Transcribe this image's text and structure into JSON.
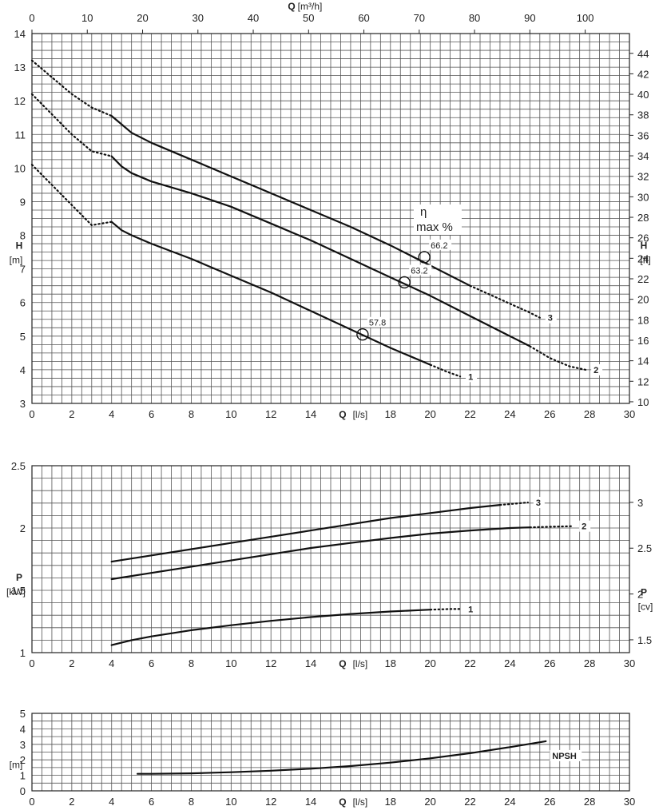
{
  "chart_data": [
    {
      "type": "line",
      "id": "head",
      "x_axis_label": "Q",
      "x_axis_unit": "[l/s]",
      "x_top_axis_label": "Q",
      "x_top_axis_unit": "[m³/h]",
      "y_axis_label": "H",
      "y_axis_unit": "[m]",
      "y_right_axis_label": "H",
      "y_right_axis_unit": "[ft]",
      "xlim": [
        0,
        30
      ],
      "ylim": [
        3,
        14
      ],
      "x_top_lim": [
        0,
        108
      ],
      "y_right_lim": [
        9.84,
        45.93
      ],
      "x_ticks": [
        0,
        2,
        4,
        6,
        8,
        10,
        12,
        14,
        16,
        18,
        20,
        22,
        24,
        26,
        28,
        30
      ],
      "x_tick_labels": [
        "0",
        "2",
        "4",
        "6",
        "8",
        "10",
        "12",
        "14",
        "16",
        "18",
        "20",
        "22",
        "24",
        "26",
        "28",
        "30"
      ],
      "y_ticks": [
        3,
        4,
        5,
        6,
        7,
        8,
        9,
        10,
        11,
        12,
        13,
        14
      ],
      "y_tick_labels": [
        "3",
        "4",
        "5",
        "6",
        "7",
        "8",
        "9",
        "10",
        "11",
        "12",
        "13",
        "14"
      ],
      "x_top_ticks": [
        0,
        10,
        20,
        30,
        40,
        50,
        60,
        70,
        80,
        90,
        100
      ],
      "x_top_tick_labels": [
        "0",
        "10",
        "20",
        "30",
        "40",
        "50",
        "60",
        "70",
        "80",
        "90",
        "100"
      ],
      "y_right_ticks": [
        10,
        12,
        14,
        16,
        18,
        20,
        22,
        24,
        26,
        28,
        30,
        32,
        34,
        36,
        38,
        40,
        42,
        44
      ],
      "y_right_tick_labels": [
        "10",
        "12",
        "14",
        "16",
        "18",
        "20",
        "22",
        "24",
        "26",
        "28",
        "30",
        "32",
        "34",
        "36",
        "38",
        "40",
        "42",
        "44"
      ],
      "grid": true,
      "series": [
        {
          "name": "1",
          "dotted_start": [
            [
              0,
              10.1
            ],
            [
              1,
              9.5
            ],
            [
              2,
              8.9
            ],
            [
              3,
              8.3
            ],
            [
              4,
              8.4
            ]
          ],
          "solid": [
            [
              4,
              8.4
            ],
            [
              4.5,
              8.15
            ],
            [
              5,
              8.0
            ],
            [
              6,
              7.75
            ],
            [
              8,
              7.3
            ],
            [
              10,
              6.8
            ],
            [
              12,
              6.3
            ],
            [
              14,
              5.75
            ],
            [
              16,
              5.2
            ],
            [
              18,
              4.65
            ],
            [
              20,
              4.15
            ]
          ],
          "dotted_end": [
            [
              20,
              4.15
            ],
            [
              20.8,
              3.95
            ],
            [
              21.5,
              3.8
            ]
          ]
        },
        {
          "name": "2",
          "dotted_start": [
            [
              0,
              12.2
            ],
            [
              1,
              11.6
            ],
            [
              2,
              11.0
            ],
            [
              3,
              10.5
            ],
            [
              4,
              10.35
            ]
          ],
          "solid": [
            [
              4,
              10.35
            ],
            [
              4.5,
              10.05
            ],
            [
              5,
              9.85
            ],
            [
              6,
              9.6
            ],
            [
              8,
              9.25
            ],
            [
              10,
              8.85
            ],
            [
              12,
              8.35
            ],
            [
              14,
              7.85
            ],
            [
              16,
              7.3
            ],
            [
              18,
              6.75
            ],
            [
              20,
              6.2
            ],
            [
              22,
              5.6
            ],
            [
              24,
              5.0
            ],
            [
              25,
              4.7
            ]
          ],
          "dotted_end": [
            [
              25,
              4.7
            ],
            [
              26,
              4.35
            ],
            [
              27,
              4.1
            ],
            [
              27.8,
              4.0
            ]
          ]
        },
        {
          "name": "3",
          "dotted_start": [
            [
              0,
              13.2
            ],
            [
              1,
              12.7
            ],
            [
              2,
              12.2
            ],
            [
              3,
              11.8
            ],
            [
              4,
              11.55
            ]
          ],
          "solid": [
            [
              4,
              11.55
            ],
            [
              4.5,
              11.3
            ],
            [
              5,
              11.05
            ],
            [
              6,
              10.75
            ],
            [
              8,
              10.25
            ],
            [
              10,
              9.75
            ],
            [
              12,
              9.25
            ],
            [
              14,
              8.75
            ],
            [
              16,
              8.25
            ],
            [
              18,
              7.7
            ],
            [
              20,
              7.1
            ],
            [
              22,
              6.5
            ]
          ],
          "dotted_end": [
            [
              22,
              6.5
            ],
            [
              23.5,
              6.1
            ],
            [
              25,
              5.7
            ],
            [
              25.5,
              5.55
            ]
          ]
        }
      ],
      "efficiency_title_symbol": "η",
      "efficiency_title": "max %",
      "efficiency_points": [
        {
          "curve": "1",
          "x": 16.6,
          "y": 5.05,
          "value": "57.8"
        },
        {
          "curve": "2",
          "x": 18.7,
          "y": 6.6,
          "value": "63.2"
        },
        {
          "curve": "3",
          "x": 19.7,
          "y": 7.35,
          "value": "66.2"
        }
      ]
    },
    {
      "type": "line",
      "id": "power",
      "x_axis_label": "Q",
      "x_axis_unit": "[l/s]",
      "y_axis_label": "P",
      "y_axis_unit": "[kW]",
      "y_right_axis_label": "P",
      "y_right_axis_unit": "[cv]",
      "xlim": [
        0,
        30
      ],
      "ylim": [
        1,
        2.5
      ],
      "y_right_lim": [
        1.36,
        3.4
      ],
      "x_ticks": [
        0,
        2,
        4,
        6,
        8,
        10,
        12,
        14,
        16,
        18,
        20,
        22,
        24,
        26,
        28,
        30
      ],
      "x_tick_labels": [
        "0",
        "2",
        "4",
        "6",
        "8",
        "10",
        "12",
        "14",
        "16",
        "18",
        "20",
        "22",
        "24",
        "26",
        "28",
        "30"
      ],
      "y_ticks": [
        1,
        1.5,
        2,
        2.5
      ],
      "y_tick_labels": [
        "1",
        "1.5",
        "2",
        "2.5"
      ],
      "y_right_ticks": [
        1.5,
        2,
        2.5,
        3
      ],
      "y_right_tick_labels": [
        "1.5",
        "2",
        "2.5",
        "3"
      ],
      "grid": true,
      "series": [
        {
          "name": "1",
          "solid": [
            [
              4,
              1.06
            ],
            [
              5,
              1.1
            ],
            [
              6,
              1.13
            ],
            [
              8,
              1.18
            ],
            [
              10,
              1.22
            ],
            [
              12,
              1.255
            ],
            [
              14,
              1.285
            ],
            [
              16,
              1.31
            ],
            [
              18,
              1.33
            ],
            [
              20,
              1.345
            ]
          ],
          "dotted_end": [
            [
              20,
              1.345
            ],
            [
              21,
              1.35
            ],
            [
              21.5,
              1.35
            ]
          ]
        },
        {
          "name": "2",
          "solid": [
            [
              4,
              1.59
            ],
            [
              6,
              1.64
            ],
            [
              8,
              1.69
            ],
            [
              10,
              1.74
            ],
            [
              12,
              1.79
            ],
            [
              14,
              1.84
            ],
            [
              16,
              1.88
            ],
            [
              18,
              1.92
            ],
            [
              20,
              1.955
            ],
            [
              22,
              1.98
            ],
            [
              24,
              2.0
            ],
            [
              25,
              2.005
            ]
          ],
          "dotted_end": [
            [
              25,
              2.005
            ],
            [
              26,
              2.01
            ],
            [
              27.2,
              2.015
            ]
          ]
        },
        {
          "name": "3",
          "solid": [
            [
              4,
              1.73
            ],
            [
              6,
              1.78
            ],
            [
              8,
              1.83
            ],
            [
              10,
              1.88
            ],
            [
              12,
              1.93
            ],
            [
              14,
              1.98
            ],
            [
              16,
              2.03
            ],
            [
              18,
              2.08
            ],
            [
              20,
              2.12
            ],
            [
              22,
              2.16
            ],
            [
              23.5,
              2.185
            ]
          ],
          "dotted_end": [
            [
              23.5,
              2.185
            ],
            [
              24.2,
              2.195
            ],
            [
              24.9,
              2.205
            ]
          ]
        }
      ]
    },
    {
      "type": "line",
      "id": "npsh",
      "x_axis_label": "Q",
      "x_axis_unit": "[l/s]",
      "y_axis_label": "",
      "y_axis_unit": "[m]",
      "xlim": [
        0,
        30
      ],
      "ylim": [
        0,
        5
      ],
      "x_ticks": [
        0,
        2,
        4,
        6,
        8,
        10,
        12,
        14,
        16,
        18,
        20,
        22,
        24,
        26,
        28,
        30
      ],
      "x_tick_labels": [
        "0",
        "2",
        "4",
        "6",
        "8",
        "10",
        "12",
        "14",
        "16",
        "18",
        "20",
        "22",
        "24",
        "26",
        "28",
        "30"
      ],
      "y_ticks": [
        0,
        1,
        2,
        3,
        4,
        5
      ],
      "y_tick_labels": [
        "0",
        "1",
        "2",
        "3",
        "4",
        "5"
      ],
      "grid": true,
      "series": [
        {
          "name": "NPSH",
          "solid": [
            [
              5.3,
              1.1
            ],
            [
              6,
              1.1
            ],
            [
              8,
              1.13
            ],
            [
              10,
              1.2
            ],
            [
              12,
              1.3
            ],
            [
              14,
              1.43
            ],
            [
              16,
              1.6
            ],
            [
              18,
              1.82
            ],
            [
              20,
              2.1
            ],
            [
              22,
              2.43
            ],
            [
              24,
              2.82
            ],
            [
              25.8,
              3.2
            ]
          ]
        }
      ]
    }
  ]
}
